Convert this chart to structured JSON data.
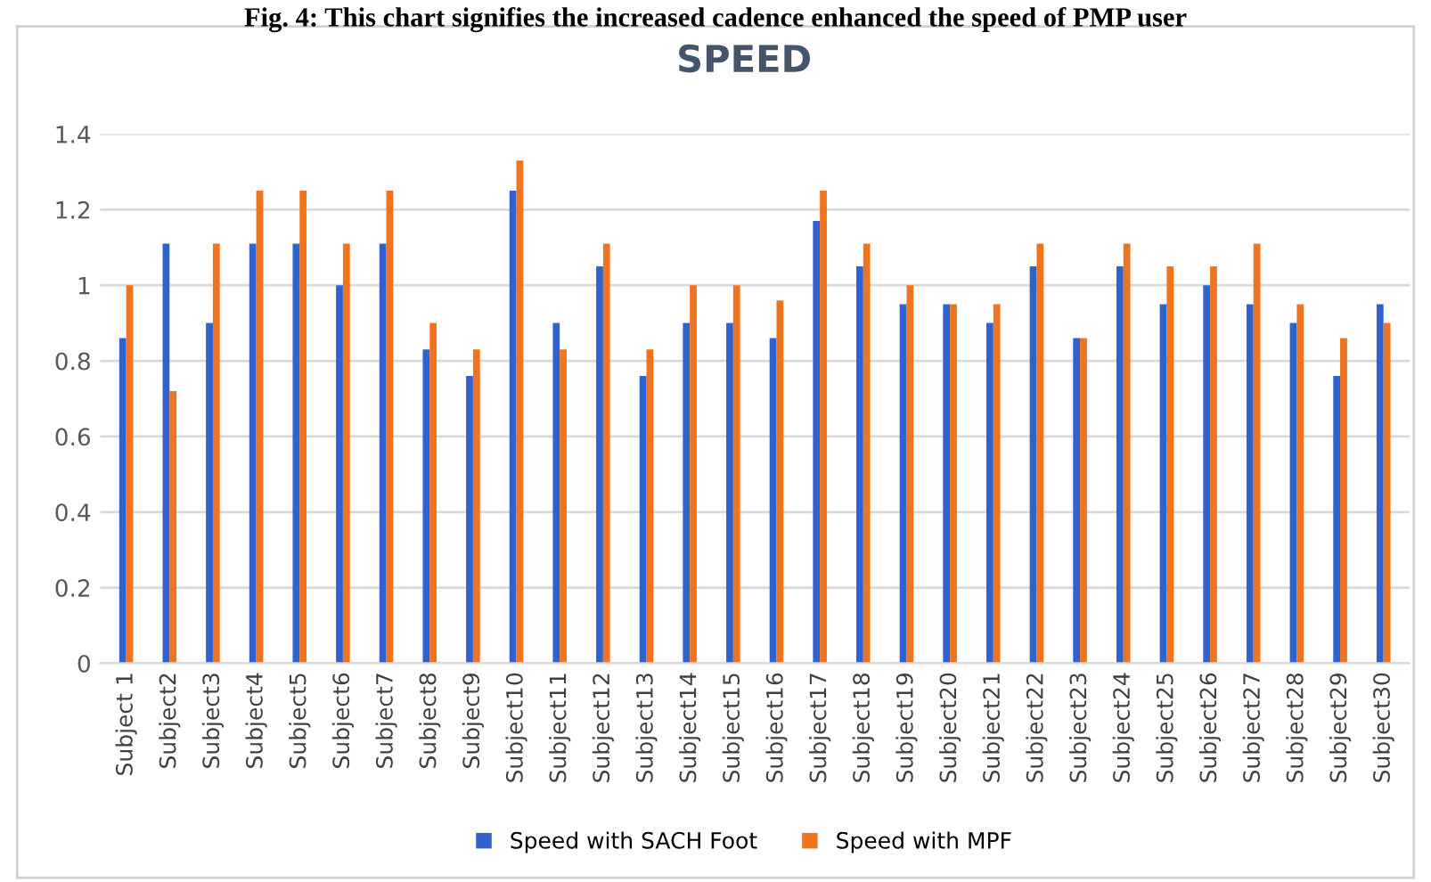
{
  "chart_data": {
    "type": "bar",
    "title": "SPEED",
    "annotations": [
      "Fig. 4: This chart signifies the increased cadence enhanced the speed of PMP user"
    ],
    "categories": [
      "Subject 1",
      "Subject2",
      "Subject3",
      "Subject4",
      "Subject5",
      "Subject6",
      "Subject7",
      "Subject8",
      "Subject9",
      "Subject10",
      "Subject11",
      "Subject12",
      "Subject13",
      "Subject14",
      "Subject15",
      "Subject16",
      "Subject17",
      "Subject18",
      "Subject19",
      "Subject20",
      "Subject21",
      "Subject22",
      "Subject23",
      "Subject24",
      "Subject25",
      "Subject26",
      "Subject27",
      "Subject28",
      "Subject29",
      "Subject30"
    ],
    "series": [
      {
        "name": "Speed with SACH Foot",
        "color": "#2f62cc",
        "values": [
          0.86,
          1.11,
          0.9,
          1.11,
          1.11,
          1.0,
          1.11,
          0.83,
          0.76,
          1.25,
          0.9,
          1.05,
          0.76,
          0.9,
          0.9,
          0.86,
          1.17,
          1.05,
          0.95,
          0.95,
          0.9,
          1.05,
          0.86,
          1.05,
          0.95,
          1.0,
          0.95,
          0.9,
          0.76,
          0.95
        ]
      },
      {
        "name": "Speed with MPF",
        "color": "#f0731f",
        "values": [
          1.0,
          0.72,
          1.11,
          1.25,
          1.25,
          1.11,
          1.25,
          0.9,
          0.83,
          1.33,
          0.83,
          1.11,
          0.83,
          1.0,
          1.0,
          0.96,
          1.25,
          1.11,
          1.0,
          0.95,
          0.95,
          1.11,
          0.86,
          1.11,
          1.05,
          1.05,
          1.11,
          0.95,
          0.86,
          0.9
        ]
      }
    ],
    "ylim": [
      0,
      1.4
    ],
    "yticks": [
      0,
      0.2,
      0.4,
      0.6,
      0.8,
      1,
      1.2,
      1.4
    ],
    "grid": "y",
    "legend": "bottom"
  }
}
